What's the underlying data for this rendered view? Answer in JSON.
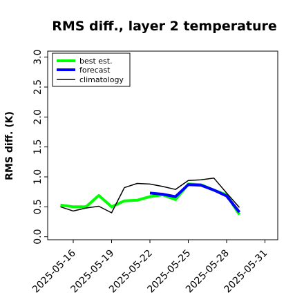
{
  "chart_data": {
    "type": "line",
    "title": "RMS diff., layer 2 temperature",
    "xlabel": "",
    "ylabel": "RMS diff. (K)",
    "xlim": [
      "2025-05-14",
      "2025-06-01"
    ],
    "ylim": [
      -0.05,
      3.1
    ],
    "x_ticks": [
      "2025-05-16",
      "2025-05-19",
      "2025-05-22",
      "2025-05-25",
      "2025-05-28",
      "2025-05-31"
    ],
    "x_tick_colors": [
      "#000000",
      "#000000",
      "#228B22",
      "#000000",
      "#000000",
      "#000000"
    ],
    "y_ticks": [
      "0.0",
      "0.5",
      "1.0",
      "1.5",
      "2.0",
      "2.5",
      "3.0"
    ],
    "legend_position": "upper-left",
    "grid": false,
    "series": [
      {
        "name": "best est.",
        "color": "#00ff00",
        "x": [
          "2025-05-15",
          "2025-05-16",
          "2025-05-17",
          "2025-05-18",
          "2025-05-19",
          "2025-05-20",
          "2025-05-21",
          "2025-05-22",
          "2025-05-23",
          "2025-05-24",
          "2025-05-25",
          "2025-05-26",
          "2025-05-27",
          "2025-05-28",
          "2025-05-29"
        ],
        "values": [
          0.53,
          0.5,
          0.5,
          0.69,
          0.5,
          0.6,
          0.61,
          0.67,
          0.7,
          0.62,
          0.88,
          0.87,
          0.78,
          0.7,
          0.37
        ]
      },
      {
        "name": "forecast",
        "color": "#0000ff",
        "x": [
          "2025-05-22",
          "2025-05-23",
          "2025-05-24",
          "2025-05-25",
          "2025-05-26",
          "2025-05-27",
          "2025-05-28",
          "2025-05-29"
        ],
        "values": [
          0.73,
          0.71,
          0.67,
          0.87,
          0.86,
          0.78,
          0.68,
          0.41
        ]
      },
      {
        "name": "climatology",
        "color": "#000000",
        "x": [
          "2025-05-15",
          "2025-05-16",
          "2025-05-17",
          "2025-05-18",
          "2025-05-19",
          "2025-05-20",
          "2025-05-21",
          "2025-05-22",
          "2025-05-23",
          "2025-05-24",
          "2025-05-25",
          "2025-05-26",
          "2025-05-27",
          "2025-05-28",
          "2025-05-29"
        ],
        "values": [
          0.5,
          0.43,
          0.48,
          0.51,
          0.4,
          0.82,
          0.89,
          0.88,
          0.84,
          0.79,
          0.94,
          0.95,
          0.98,
          0.73,
          0.49
        ]
      }
    ]
  }
}
